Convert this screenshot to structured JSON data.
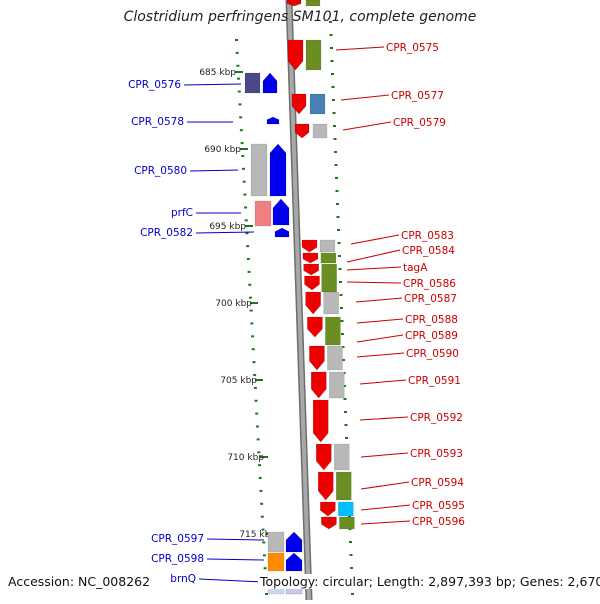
{
  "title": "Clostridium perfringens SM101, complete genome",
  "accession": "Accession: NC_008262",
  "topology": "Topology: circular; Length: 2,897,393 bp; Genes: 2,670",
  "kbp_labels": [
    "685 kbp",
    "690 kbp",
    "695 kbp",
    "700 kbp",
    "705 kbp",
    "710 kbp",
    "715 kbp"
  ],
  "left_gene_labels": [
    "CPR_0576",
    "CPR_0578",
    "CPR_0580",
    "prfC",
    "CPR_0582",
    "CPR_0597",
    "CPR_0598",
    "brnQ"
  ],
  "right_gene_labels": [
    "CPR_0575",
    "CPR_0577",
    "CPR_0579",
    "CPR_0583",
    "CPR_0584",
    "tagA",
    "CPR_0586",
    "CPR_0587",
    "CPR_0588",
    "CPR_0589",
    "CPR_0590",
    "CPR_0591",
    "CPR_0592",
    "CPR_0593",
    "CPR_0594",
    "CPR_0595",
    "CPR_0596"
  ],
  "colors": {
    "forward_gene": "#0000ee",
    "reverse_gene": "#ee0000",
    "cog_green": "#6b8e23",
    "cog_gray": "#b8b8b8",
    "cog_navy": "#4a4a8a",
    "cog_steel": "#4682b4",
    "cog_pink": "#f08080",
    "cog_orange": "#ff8c00",
    "cog_cyan": "#00bfff",
    "backbone": "#909090",
    "tick": "#1a7a1a",
    "forward_label": "#0000cc",
    "reverse_label": "#cc0000"
  }
}
